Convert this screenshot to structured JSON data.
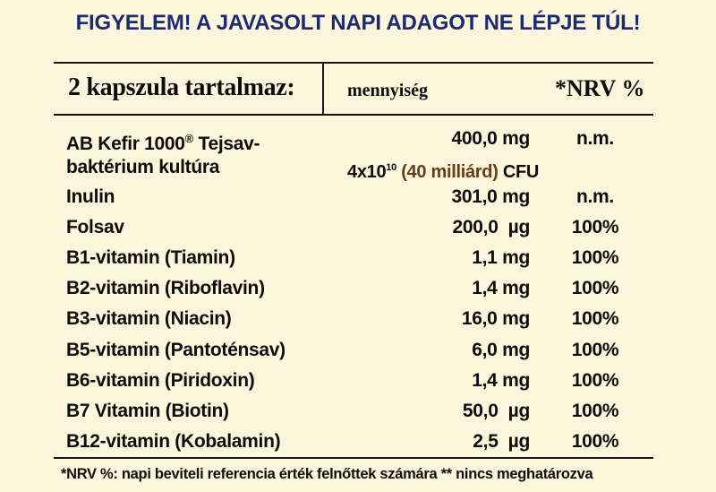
{
  "warning": "FIGYELEM! A JAVASOLT NAPI ADAGOT NE LÉPJE TÚL!",
  "header": {
    "label": "2 kapszula tartalmaz:",
    "quantity": "mennyiség",
    "nrv": "*NRV %"
  },
  "kefir": {
    "name": "AB Kefir 1000",
    "registered": "®",
    "name_suffix": " Tejsav-",
    "name_line2": "baktérium kultúra",
    "amount": "400,0 mg",
    "nrv": "n.m.",
    "cfu_base": "4x10",
    "cfu_exp": "10",
    "cfu_paren": " (40 milliárd)",
    "cfu_unit": " CFU"
  },
  "rows": [
    {
      "name": "Inulin",
      "amount": "301,0 mg",
      "nrv": "n.m."
    },
    {
      "name": "Folsav",
      "amount": "200,0  µg",
      "nrv": "100%"
    },
    {
      "name": "B1-vitamin (Tiamin)",
      "amount": "1,1 mg",
      "nrv": "100%"
    },
    {
      "name": "B2-vitamin (Riboflavin)",
      "amount": "1,4 mg",
      "nrv": "100%"
    },
    {
      "name": "B3-vitamin (Niacin)",
      "amount": "16,0 mg",
      "nrv": "100%"
    },
    {
      "name": "B5-vitamin (Pantoténsav)",
      "amount": "6,0 mg",
      "nrv": "100%"
    },
    {
      "name": "B6-vitamin (Piridoxin)",
      "amount": "1,4 mg",
      "nrv": "100%"
    },
    {
      "name": "B7 Vitamin (Biotin)",
      "amount": "50,0  µg",
      "nrv": "100%"
    },
    {
      "name": "B12-vitamin (Kobalamin)",
      "amount": "2,5  µg",
      "nrv": "100%"
    }
  ],
  "footnote": "*NRV %: napi beviteli referencia érték felnőttek számára   ** nincs meghatározva"
}
